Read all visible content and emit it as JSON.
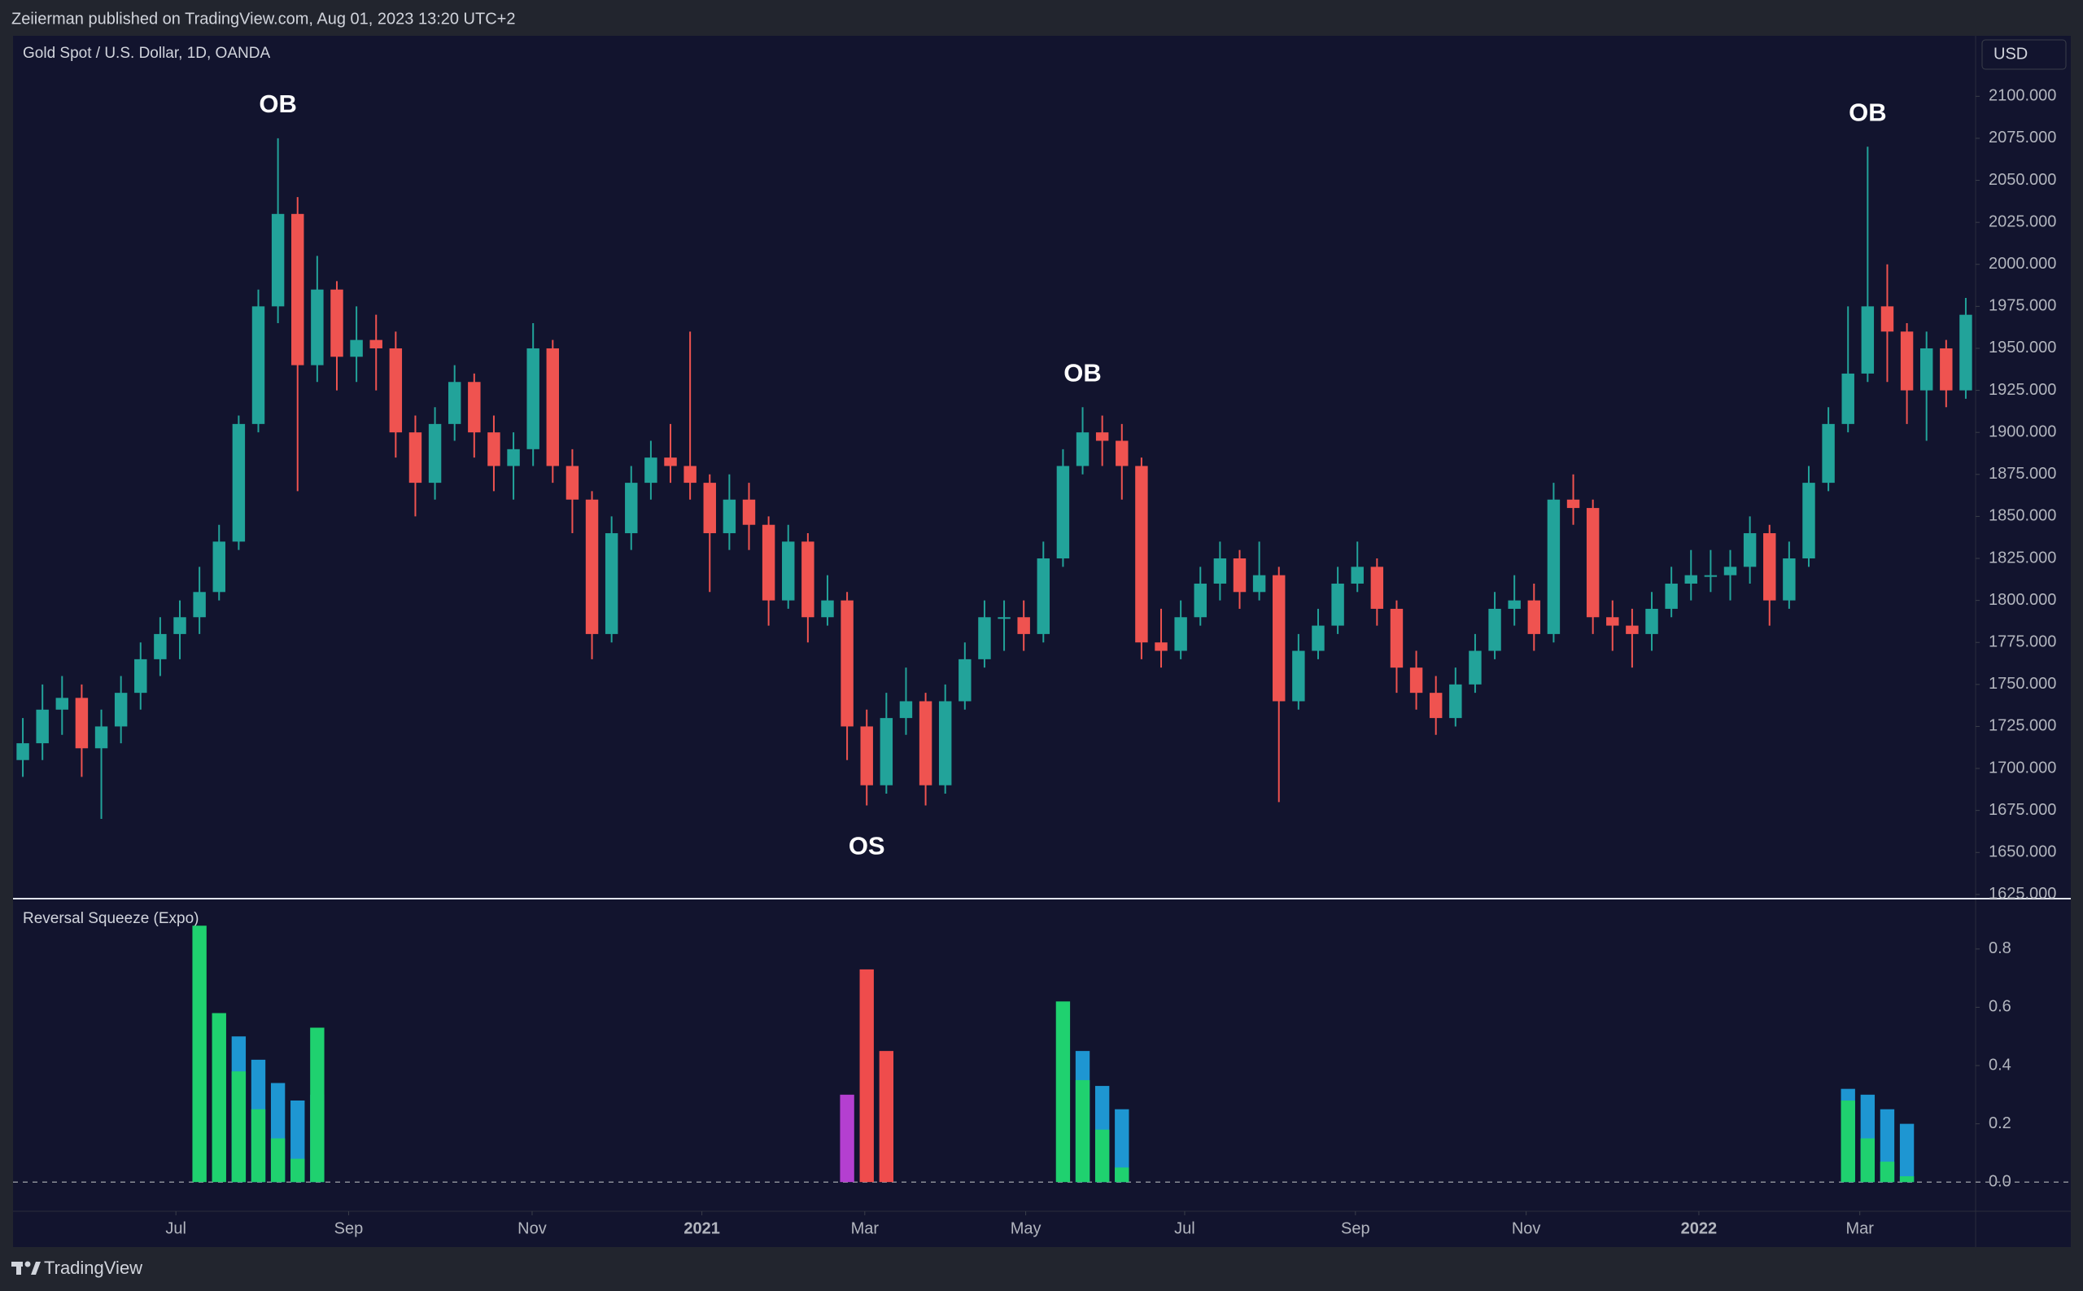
{
  "header": {
    "published": "Zeiierman published on TradingView.com, Aug 01, 2023 13:20 UTC+2"
  },
  "footer": {
    "brand": "TradingView"
  },
  "chart_data": [
    {
      "type": "candlestick",
      "title": "Gold Spot / U.S. Dollar, 1D, OANDA",
      "currency": "USD",
      "up_color": "#22a39a",
      "down_color": "#ef5350",
      "open": [
        1705,
        1715,
        1735,
        1742,
        1712,
        1725,
        1745,
        1765,
        1780,
        1790,
        1805,
        1835,
        1905,
        1975,
        2030,
        1940,
        1985,
        1945,
        1955,
        1950,
        1900,
        1870,
        1905,
        1930,
        1900,
        1880,
        1890,
        1950,
        1880,
        1860,
        1780,
        1840,
        1870,
        1885,
        1880,
        1870,
        1840,
        1860,
        1845,
        1800,
        1835,
        1790,
        1800,
        1725,
        1690,
        1730,
        1740,
        1690,
        1740,
        1765,
        1790,
        1790,
        1780,
        1825,
        1880,
        1900,
        1895,
        1880,
        1775,
        1770,
        1790,
        1810,
        1825,
        1805,
        1815,
        1740,
        1770,
        1785,
        1810,
        1820,
        1795,
        1760,
        1745,
        1730,
        1750,
        1770,
        1795,
        1800,
        1780,
        1860,
        1855,
        1790,
        1785,
        1780,
        1795,
        1810,
        1815,
        1815,
        1820,
        1840,
        1800,
        1825,
        1870,
        1905,
        1935,
        1975,
        1960,
        1925,
        1950,
        1925
      ],
      "high": [
        1730,
        1750,
        1755,
        1750,
        1735,
        1755,
        1775,
        1790,
        1800,
        1820,
        1845,
        1910,
        1985,
        2075,
        2040,
        2005,
        1990,
        1975,
        1970,
        1960,
        1910,
        1915,
        1940,
        1935,
        1910,
        1900,
        1965,
        1955,
        1890,
        1865,
        1850,
        1880,
        1895,
        1905,
        1960,
        1875,
        1875,
        1870,
        1850,
        1845,
        1840,
        1815,
        1805,
        1735,
        1745,
        1760,
        1745,
        1750,
        1775,
        1800,
        1800,
        1800,
        1835,
        1890,
        1915,
        1910,
        1905,
        1885,
        1795,
        1800,
        1820,
        1835,
        1830,
        1835,
        1820,
        1780,
        1795,
        1820,
        1835,
        1825,
        1800,
        1770,
        1755,
        1760,
        1780,
        1805,
        1815,
        1810,
        1870,
        1875,
        1860,
        1800,
        1795,
        1805,
        1820,
        1830,
        1830,
        1830,
        1850,
        1845,
        1835,
        1880,
        1915,
        1975,
        2070,
        2000,
        1965,
        1960,
        1955,
        1980
      ],
      "low": [
        1695,
        1705,
        1720,
        1695,
        1670,
        1715,
        1735,
        1755,
        1765,
        1780,
        1800,
        1830,
        1900,
        1965,
        1865,
        1930,
        1925,
        1930,
        1925,
        1885,
        1850,
        1860,
        1895,
        1885,
        1865,
        1860,
        1880,
        1870,
        1840,
        1765,
        1775,
        1830,
        1860,
        1870,
        1860,
        1805,
        1830,
        1830,
        1785,
        1795,
        1775,
        1785,
        1705,
        1678,
        1685,
        1720,
        1678,
        1685,
        1735,
        1760,
        1770,
        1770,
        1775,
        1820,
        1875,
        1880,
        1860,
        1765,
        1760,
        1765,
        1785,
        1800,
        1795,
        1800,
        1680,
        1735,
        1765,
        1780,
        1805,
        1785,
        1745,
        1735,
        1720,
        1725,
        1745,
        1765,
        1785,
        1770,
        1775,
        1845,
        1780,
        1770,
        1760,
        1770,
        1790,
        1800,
        1805,
        1800,
        1810,
        1785,
        1795,
        1820,
        1865,
        1900,
        1930,
        1930,
        1905,
        1895,
        1915,
        1920
      ],
      "close": [
        1715,
        1735,
        1742,
        1712,
        1725,
        1745,
        1765,
        1780,
        1790,
        1805,
        1835,
        1905,
        1975,
        2030,
        1940,
        1985,
        1945,
        1955,
        1950,
        1900,
        1870,
        1905,
        1930,
        1900,
        1880,
        1890,
        1950,
        1880,
        1860,
        1780,
        1840,
        1870,
        1885,
        1880,
        1870,
        1840,
        1860,
        1845,
        1800,
        1835,
        1790,
        1800,
        1725,
        1690,
        1730,
        1740,
        1690,
        1740,
        1765,
        1790,
        1790,
        1780,
        1825,
        1880,
        1900,
        1895,
        1880,
        1775,
        1770,
        1790,
        1810,
        1825,
        1805,
        1815,
        1740,
        1770,
        1785,
        1810,
        1820,
        1795,
        1760,
        1745,
        1730,
        1750,
        1770,
        1795,
        1800,
        1780,
        1860,
        1855,
        1790,
        1785,
        1780,
        1795,
        1810,
        1815,
        1815,
        1820,
        1840,
        1800,
        1825,
        1870,
        1905,
        1935,
        1975,
        1960,
        1925,
        1950,
        1925,
        1970
      ],
      "xlim": [
        -0.5,
        99.5
      ],
      "xticks": [
        {
          "value": 7.8,
          "label": "Jul"
        },
        {
          "value": 16.6,
          "label": "Sep"
        },
        {
          "value": 25.95,
          "label": "Nov"
        },
        {
          "value": 34.6,
          "label": "2021"
        },
        {
          "value": 42.9,
          "label": "Mar"
        },
        {
          "value": 51.1,
          "label": "May"
        },
        {
          "value": 59.2,
          "label": "Jul"
        },
        {
          "value": 67.9,
          "label": "Sep"
        },
        {
          "value": 76.6,
          "label": "Nov"
        },
        {
          "value": 85.4,
          "label": "2022"
        },
        {
          "value": 93.6,
          "label": "Mar"
        }
      ],
      "ylim": [
        1623,
        2136
      ],
      "yticks": [
        {
          "value": 1625,
          "label": "1625.000"
        },
        {
          "value": 1650,
          "label": "1650.000"
        },
        {
          "value": 1675,
          "label": "1675.000"
        },
        {
          "value": 1700,
          "label": "1700.000"
        },
        {
          "value": 1725,
          "label": "1725.000"
        },
        {
          "value": 1750,
          "label": "1750.000"
        },
        {
          "value": 1775,
          "label": "1775.000"
        },
        {
          "value": 1800,
          "label": "1800.000"
        },
        {
          "value": 1825,
          "label": "1825.000"
        },
        {
          "value": 1850,
          "label": "1850.000"
        },
        {
          "value": 1875,
          "label": "1875.000"
        },
        {
          "value": 1900,
          "label": "1900.000"
        },
        {
          "value": 1925,
          "label": "1925.000"
        },
        {
          "value": 1950,
          "label": "1950.000"
        },
        {
          "value": 1975,
          "label": "1975.000"
        },
        {
          "value": 2000,
          "label": "2000.000"
        },
        {
          "value": 2025,
          "label": "2025.000"
        },
        {
          "value": 2050,
          "label": "2050.000"
        },
        {
          "value": 2075,
          "label": "2075.000"
        },
        {
          "value": 2100,
          "label": "2100.000"
        }
      ],
      "annotations": [
        {
          "text": "OB",
          "x": 13,
          "position": "above"
        },
        {
          "text": "OS",
          "x": 43,
          "position": "below"
        },
        {
          "text": "OB",
          "x": 54,
          "position": "above"
        },
        {
          "text": "OB",
          "x": 94,
          "position": "above"
        }
      ]
    },
    {
      "type": "bar",
      "title": "Reversal Squeeze (Expo)",
      "ylim": [
        -0.1,
        0.97
      ],
      "yticks": [
        {
          "value": 0,
          "label": "0.0"
        },
        0.2,
        0.4,
        0.6,
        0.8
      ],
      "zero_line": "dashed",
      "series": [
        {
          "color": "#1e96d2",
          "values": [
            null,
            null,
            null,
            null,
            null,
            null,
            null,
            null,
            null,
            null,
            null,
            0.5,
            0.42,
            0.34,
            0.28,
            0.3,
            null,
            null,
            null,
            null,
            null,
            null,
            null,
            null,
            null,
            null,
            null,
            null,
            null,
            null,
            null,
            null,
            null,
            null,
            null,
            null,
            null,
            null,
            null,
            null,
            null,
            null,
            null,
            null,
            null,
            null,
            null,
            null,
            null,
            null,
            null,
            null,
            null,
            null,
            0.45,
            0.33,
            0.25,
            null,
            null,
            null,
            null,
            null,
            null,
            null,
            null,
            null,
            null,
            null,
            null,
            null,
            null,
            null,
            null,
            null,
            null,
            null,
            null,
            null,
            null,
            null,
            null,
            null,
            null,
            null,
            null,
            null,
            null,
            null,
            null,
            null,
            null,
            null,
            null,
            0.32,
            0.3,
            0.25,
            0.2,
            null,
            null,
            null
          ]
        },
        {
          "color": "#1fd16f",
          "values": [
            null,
            null,
            null,
            null,
            null,
            null,
            null,
            null,
            null,
            0.88,
            0.58,
            0.38,
            0.25,
            0.15,
            0.08,
            0.53,
            null,
            null,
            null,
            null,
            null,
            null,
            null,
            null,
            null,
            null,
            null,
            null,
            null,
            null,
            null,
            null,
            null,
            null,
            null,
            null,
            null,
            null,
            null,
            null,
            null,
            null,
            null,
            null,
            null,
            null,
            null,
            null,
            null,
            null,
            null,
            null,
            null,
            0.62,
            0.35,
            0.18,
            0.05,
            null,
            null,
            null,
            null,
            null,
            null,
            null,
            null,
            null,
            null,
            null,
            null,
            null,
            null,
            null,
            null,
            null,
            null,
            null,
            null,
            null,
            null,
            null,
            null,
            null,
            null,
            null,
            null,
            null,
            null,
            null,
            null,
            null,
            null,
            null,
            null,
            0.28,
            0.15,
            0.07,
            0.02,
            null,
            null,
            null
          ]
        },
        {
          "color": "#ef4c4c",
          "values": [
            null,
            null,
            null,
            null,
            null,
            null,
            null,
            null,
            null,
            null,
            null,
            null,
            null,
            null,
            null,
            null,
            null,
            null,
            null,
            null,
            null,
            null,
            null,
            null,
            null,
            null,
            null,
            null,
            null,
            null,
            null,
            null,
            null,
            null,
            null,
            null,
            null,
            null,
            null,
            null,
            null,
            null,
            null,
            0.73,
            0.45,
            null,
            null,
            null,
            null,
            null,
            null,
            null,
            null,
            null,
            null,
            null,
            null,
            null,
            null,
            null,
            null,
            null,
            null,
            null,
            null,
            null,
            null,
            null,
            null,
            null,
            null,
            null,
            null,
            null,
            null,
            null,
            null,
            null,
            null,
            null,
            null,
            null,
            null,
            null,
            null,
            null,
            null,
            null,
            null,
            null,
            null,
            null,
            null,
            null,
            null,
            null,
            null,
            null,
            null,
            null
          ]
        },
        {
          "color": "#b43fd0",
          "values": [
            null,
            null,
            null,
            null,
            null,
            null,
            null,
            null,
            null,
            null,
            null,
            null,
            null,
            null,
            null,
            null,
            null,
            null,
            null,
            null,
            null,
            null,
            null,
            null,
            null,
            null,
            null,
            null,
            null,
            null,
            null,
            null,
            null,
            null,
            null,
            null,
            null,
            null,
            null,
            null,
            null,
            null,
            0.3,
            null,
            null,
            null,
            null,
            null,
            null,
            null,
            null,
            null,
            null,
            null,
            null,
            null,
            null,
            null,
            null,
            null,
            null,
            null,
            null,
            null,
            null,
            null,
            null,
            null,
            null,
            null,
            null,
            null,
            null,
            null,
            null,
            null,
            null,
            null,
            null,
            null,
            null,
            null,
            null,
            null,
            null,
            null,
            null,
            null,
            null,
            null,
            null,
            null,
            null,
            null,
            null,
            null,
            null,
            null,
            null,
            null
          ]
        }
      ]
    }
  ]
}
